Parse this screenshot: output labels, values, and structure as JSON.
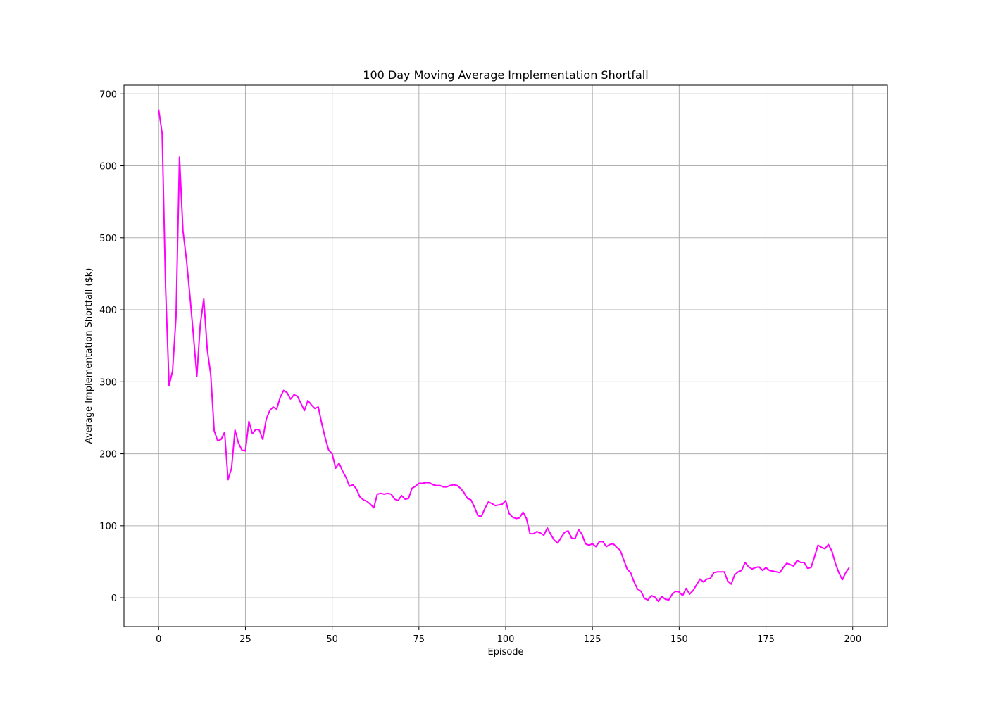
{
  "chart_data": {
    "type": "line",
    "title": "100 Day Moving Average Implementation Shortfall",
    "xlabel": "Episode",
    "ylabel": "Average Implementation Shortfall ($k)",
    "xlim": [
      -10,
      210
    ],
    "ylim": [
      -40,
      712
    ],
    "grid": true,
    "line_color": "#ff00ff",
    "x_ticks": [
      0,
      25,
      50,
      75,
      100,
      125,
      150,
      175,
      200
    ],
    "x_tick_labels": [
      "0",
      "25",
      "50",
      "75",
      "100",
      "125",
      "150",
      "175",
      "200"
    ],
    "y_ticks": [
      0,
      100,
      200,
      300,
      400,
      500,
      600,
      700
    ],
    "y_tick_labels": [
      "0",
      "100",
      "200",
      "300",
      "400",
      "500",
      "600",
      "700"
    ],
    "series": [
      {
        "x_start": 0,
        "x_step": 1,
        "values": [
          678,
          645,
          430,
          295,
          315,
          390,
          612,
          510,
          470,
          420,
          365,
          308,
          380,
          415,
          345,
          310,
          232,
          218,
          220,
          230,
          164,
          180,
          233,
          215,
          205,
          204,
          245,
          228,
          234,
          233,
          220,
          248,
          260,
          265,
          262,
          278,
          288,
          285,
          276,
          282,
          280,
          270,
          260,
          274,
          268,
          263,
          265,
          242,
          222,
          205,
          200,
          180,
          187,
          176,
          167,
          155,
          157,
          151,
          140,
          136,
          134,
          130,
          125,
          144,
          145,
          144,
          145,
          144,
          137,
          135,
          142,
          137,
          138,
          152,
          155,
          159,
          159,
          160,
          160,
          157,
          156,
          156,
          154,
          154,
          156,
          157,
          156,
          152,
          146,
          138,
          136,
          126,
          114,
          113,
          124,
          133,
          131,
          128,
          129,
          130,
          135,
          117,
          112,
          110,
          111,
          119,
          110,
          89,
          89,
          92,
          90,
          87,
          97,
          88,
          80,
          76,
          84,
          91,
          93,
          83,
          82,
          95,
          88,
          75,
          73,
          75,
          71,
          78,
          78,
          71,
          74,
          75,
          70,
          66,
          53,
          40,
          35,
          22,
          12,
          9,
          -1,
          -3,
          3,
          1,
          -5,
          2,
          -2,
          -3,
          5,
          9,
          8,
          3,
          13,
          5,
          10,
          18,
          26,
          22,
          26,
          27,
          35,
          36,
          36,
          36,
          23,
          19,
          32,
          36,
          38,
          49,
          43,
          40,
          42,
          43,
          38,
          42,
          38,
          37,
          36,
          35,
          42,
          48,
          46,
          44,
          52,
          49,
          49,
          41,
          42,
          57,
          73,
          70,
          68,
          74,
          65,
          48,
          35,
          25,
          35,
          42
        ]
      }
    ]
  }
}
